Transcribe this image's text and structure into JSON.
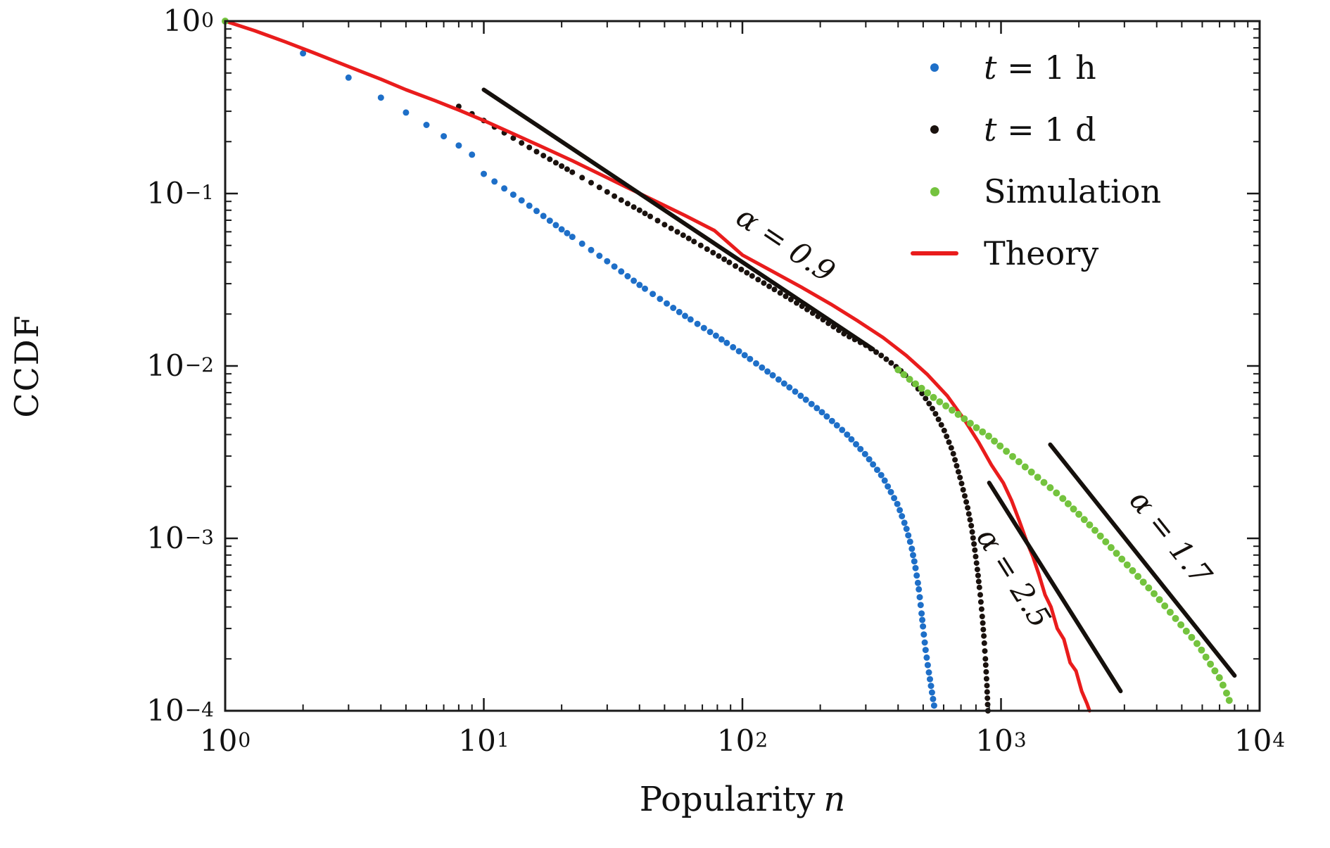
{
  "figure": {
    "background": "#ffffff",
    "xlabel": {
      "text": "Popularity",
      "var": "n"
    },
    "ylabel": "CCDF",
    "x_tick_base": "10",
    "x_tick_exponents": [
      0,
      1,
      2,
      3,
      4
    ],
    "y_tick_base": "10",
    "y_tick_exponents": [
      0,
      -1,
      -2,
      -3,
      -4
    ],
    "axis_color": "#1a1a1a"
  },
  "chart_data": {
    "type": "scatter",
    "title": "",
    "xlabel": "Popularity n",
    "ylabel": "CCDF",
    "xscale": "log",
    "yscale": "log",
    "xlim": [
      1,
      10000
    ],
    "ylim": [
      0.0001,
      1
    ],
    "grid": false,
    "legend_position": "top-right",
    "series": [
      {
        "name": "t = 1 h",
        "italic_var": "t",
        "rest": " = 1 h",
        "style": "dots",
        "color": "#1e6fc8",
        "dot_radius": 4.5,
        "dot_gap": 9,
        "segments": [
          [
            [
              2,
              0.65
            ],
            [
              3,
              0.47
            ],
            [
              4,
              0.36
            ],
            [
              5,
              0.295
            ],
            [
              6,
              0.25
            ],
            [
              7,
              0.215
            ],
            [
              8,
              0.19
            ],
            [
              9,
              0.168
            ],
            [
              10,
              0.13
            ],
            [
              12,
              0.107
            ],
            [
              15,
              0.085
            ],
            [
              20,
              0.062
            ],
            [
              25,
              0.049
            ],
            [
              30,
              0.0405
            ],
            [
              40,
              0.0295
            ],
            [
              50,
              0.0235
            ],
            [
              60,
              0.0195
            ],
            [
              80,
              0.0148
            ],
            [
              100,
              0.0118
            ],
            [
              130,
              0.0089
            ],
            [
              160,
              0.0071
            ],
            [
              200,
              0.0055
            ],
            [
              250,
              0.0041
            ],
            [
              300,
              0.00305
            ],
            [
              350,
              0.00225
            ],
            [
              400,
              0.00155
            ],
            [
              430,
              0.00115
            ],
            [
              450,
              0.0009
            ],
            [
              465,
              0.0007
            ],
            [
              480,
              0.00052
            ],
            [
              490,
              0.0004
            ],
            [
              500,
              0.0003
            ],
            [
              510,
              0.00023
            ],
            [
              525,
              0.00017
            ],
            [
              540,
              0.00013
            ],
            [
              555,
              0.0001
            ]
          ]
        ]
      },
      {
        "name": "t = 1 d",
        "italic_var": "t",
        "rest": " = 1 d",
        "style": "dots",
        "color": "#1a120e",
        "dot_radius": 4,
        "dot_gap": 8.5,
        "segments": [
          [
            [
              8,
              0.32
            ],
            [
              9,
              0.29
            ],
            [
              10,
              0.265
            ],
            [
              12,
              0.225
            ],
            [
              15,
              0.185
            ],
            [
              18,
              0.158
            ],
            [
              22,
              0.133
            ],
            [
              27,
              0.112
            ],
            [
              33,
              0.094
            ],
            [
              40,
              0.08
            ],
            [
              50,
              0.066
            ],
            [
              60,
              0.0565
            ],
            [
              75,
              0.0465
            ],
            [
              90,
              0.0395
            ],
            [
              110,
              0.033
            ],
            [
              140,
              0.0265
            ],
            [
              170,
              0.0222
            ],
            [
              200,
              0.019
            ],
            [
              250,
              0.0152
            ],
            [
              300,
              0.0132
            ],
            [
              350,
              0.0113
            ],
            [
              400,
              0.0097
            ],
            [
              450,
              0.0082
            ],
            [
              500,
              0.0068
            ],
            [
              550,
              0.0055
            ],
            [
              600,
              0.0043
            ],
            [
              650,
              0.0032
            ],
            [
              700,
              0.00215
            ],
            [
              740,
              0.00155
            ],
            [
              770,
              0.00115
            ],
            [
              790,
              0.00088
            ],
            [
              810,
              0.00066
            ],
            [
              830,
              0.00048
            ],
            [
              845,
              0.00036
            ],
            [
              860,
              0.00026
            ],
            [
              872,
              0.00019
            ],
            [
              882,
              0.00014
            ],
            [
              890,
              0.0001
            ]
          ]
        ]
      },
      {
        "name": "Simulation",
        "style": "dots",
        "color": "#74c33e",
        "dot_radius": 5,
        "dot_gap": 10.5,
        "segments": [
          [
            [
              1,
              1.0
            ]
          ],
          [
            [
              400,
              0.0095
            ],
            [
              450,
              0.0082
            ],
            [
              500,
              0.0073
            ],
            [
              560,
              0.0064
            ],
            [
              630,
              0.0057
            ],
            [
              700,
              0.0051
            ],
            [
              800,
              0.0044
            ],
            [
              900,
              0.0039
            ],
            [
              1000,
              0.0034
            ],
            [
              1150,
              0.00285
            ],
            [
              1300,
              0.00245
            ],
            [
              1500,
              0.00205
            ],
            [
              1700,
              0.00175
            ],
            [
              2000,
              0.00138
            ],
            [
              2300,
              0.00112
            ],
            [
              2600,
              0.00092
            ],
            [
              3000,
              0.00073
            ],
            [
              3500,
              0.00057
            ],
            [
              4000,
              0.00046
            ],
            [
              4600,
              0.00036
            ],
            [
              5200,
              0.00029
            ],
            [
              5800,
              0.00024
            ],
            [
              6400,
              0.00019
            ],
            [
              7000,
              0.000155
            ],
            [
              7400,
              0.00013
            ],
            [
              7800,
              0.000105
            ]
          ]
        ]
      },
      {
        "name": "Theory",
        "style": "line",
        "color": "#e91c1c",
        "line_width": 5,
        "segments": [
          [
            [
              1,
              1.0
            ],
            [
              1.3,
              0.88
            ],
            [
              1.7,
              0.76
            ],
            [
              2.2,
              0.655
            ],
            [
              3,
              0.545
            ],
            [
              4,
              0.46
            ],
            [
              5,
              0.4
            ],
            [
              6.5,
              0.345
            ],
            [
              8,
              0.305
            ],
            [
              10,
              0.265
            ],
            [
              13,
              0.222
            ],
            [
              17,
              0.185
            ],
            [
              22,
              0.155
            ],
            [
              28,
              0.13
            ],
            [
              36,
              0.108
            ],
            [
              46,
              0.0905
            ],
            [
              60,
              0.0745
            ],
            [
              78,
              0.061
            ],
            [
              100,
              0.044
            ],
            [
              130,
              0.0355
            ],
            [
              170,
              0.0285
            ],
            [
              220,
              0.0228
            ],
            [
              280,
              0.0182
            ],
            [
              350,
              0.0146
            ],
            [
              430,
              0.0115
            ],
            [
              520,
              0.0089
            ],
            [
              620,
              0.0067
            ],
            [
              720,
              0.0049
            ],
            [
              820,
              0.0036
            ],
            [
              920,
              0.00265
            ],
            [
              1020,
              0.0021
            ],
            [
              1100,
              0.00165
            ],
            [
              1180,
              0.00125
            ],
            [
              1260,
              0.00095
            ],
            [
              1330,
              0.00078
            ],
            [
              1400,
              0.00062
            ],
            [
              1480,
              0.00047
            ],
            [
              1560,
              0.0004
            ],
            [
              1650,
              0.0003
            ],
            [
              1750,
              0.00026
            ],
            [
              1850,
              0.00019
            ],
            [
              1950,
              0.00017
            ],
            [
              2050,
              0.00013
            ],
            [
              2150,
              0.00011
            ],
            [
              2200,
              0.0001
            ]
          ]
        ]
      }
    ],
    "guide_lines": [
      {
        "label": "α = 0.9",
        "from": [
          10,
          0.4
        ],
        "to": [
          320,
          0.0125
        ],
        "color": "#15100c",
        "width": 6
      },
      {
        "label": "α = 2.5",
        "from": [
          900,
          0.0021
        ],
        "to": [
          2900,
          0.00013
        ],
        "color": "#15100c",
        "width": 6
      },
      {
        "label": "α = 1.7",
        "from": [
          1550,
          0.0035
        ],
        "to": [
          8000,
          0.00016
        ],
        "color": "#15100c",
        "width": 6
      }
    ]
  }
}
